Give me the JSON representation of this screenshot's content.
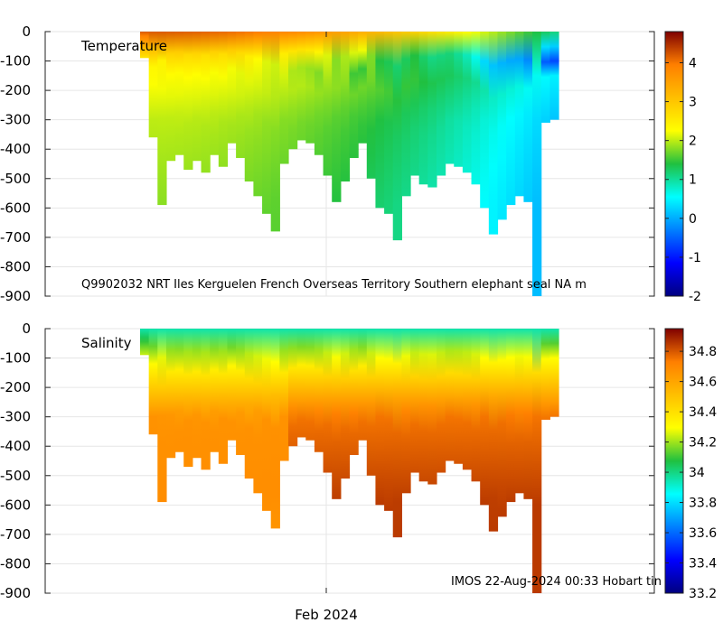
{
  "chart_data": [
    {
      "type": "heatmap",
      "title": "Temperature",
      "variable": "Temperature",
      "xlabel": "",
      "ylabel": "",
      "ylim": [
        -900,
        0
      ],
      "yticks": [
        0,
        -100,
        -200,
        -300,
        -400,
        -500,
        -600,
        -700,
        -800,
        -900
      ],
      "ytick_labels": [
        "0",
        "-100",
        "-200",
        "-300",
        "-400",
        "-500",
        "-600",
        "-700",
        "-800",
        "-900"
      ],
      "colorbar": {
        "range": [
          -2,
          4.8
        ],
        "ticks": [
          4,
          3,
          2,
          1,
          0,
          -1,
          -2
        ],
        "tick_labels": [
          "4",
          "3",
          "2",
          "1",
          "0",
          "-1",
          "-2"
        ]
      },
      "annotation": "Q9902032 NRT Iles Kerguelen French Overseas Territory Southern elephant seal NA m",
      "profile_max_depths": [
        90,
        360,
        590,
        440,
        420,
        470,
        440,
        480,
        420,
        460,
        380,
        430,
        510,
        560,
        620,
        680,
        450,
        400,
        370,
        380,
        420,
        490,
        580,
        510,
        430,
        380,
        500,
        600,
        620,
        710,
        560,
        490,
        520,
        530,
        490,
        450,
        460,
        480,
        520,
        600,
        690,
        640,
        590,
        560,
        580,
        900,
        310,
        300
      ],
      "surface_profile": [
        {
          "depth": 0,
          "value": 4.2
        },
        {
          "depth": 100,
          "value": 2.4
        },
        {
          "depth": 300,
          "value": 2.0
        },
        {
          "depth": 600,
          "value": 1.8
        }
      ]
    },
    {
      "type": "heatmap",
      "title": "Salinity",
      "variable": "Salinity",
      "xlabel": "",
      "ylabel": "",
      "ylim": [
        -900,
        0
      ],
      "yticks": [
        0,
        -100,
        -200,
        -300,
        -400,
        -500,
        -600,
        -700,
        -800,
        -900
      ],
      "ytick_labels": [
        "0",
        "-100",
        "-200",
        "-300",
        "-400",
        "-500",
        "-600",
        "-700",
        "-800",
        "-900"
      ],
      "colorbar": {
        "range": [
          33.2,
          34.95
        ],
        "ticks": [
          34.8,
          34.6,
          34.4,
          34.2,
          34,
          33.8,
          33.6,
          33.4,
          33.2
        ],
        "tick_labels": [
          "34.8",
          "34.6",
          "34.4",
          "34.2",
          "34",
          "33.8",
          "33.6",
          "33.4",
          "33.2"
        ]
      },
      "annotation": "IMOS 22-Aug-2024 00:33 Hobart tin",
      "profile_max_depths": [
        90,
        360,
        590,
        440,
        420,
        470,
        440,
        480,
        420,
        460,
        380,
        430,
        510,
        560,
        620,
        680,
        450,
        400,
        370,
        380,
        420,
        490,
        580,
        510,
        430,
        380,
        500,
        600,
        620,
        710,
        560,
        490,
        520,
        530,
        490,
        450,
        460,
        480,
        520,
        600,
        690,
        640,
        590,
        560,
        580,
        900,
        310,
        300
      ],
      "surface_profile": [
        {
          "depth": 0,
          "value": 33.95
        },
        {
          "depth": 100,
          "value": 34.3
        },
        {
          "depth": 300,
          "value": 34.75
        },
        {
          "depth": 600,
          "value": 34.85
        }
      ]
    }
  ],
  "x_axis": {
    "tick_labels": [
      "Feb 2024"
    ]
  }
}
